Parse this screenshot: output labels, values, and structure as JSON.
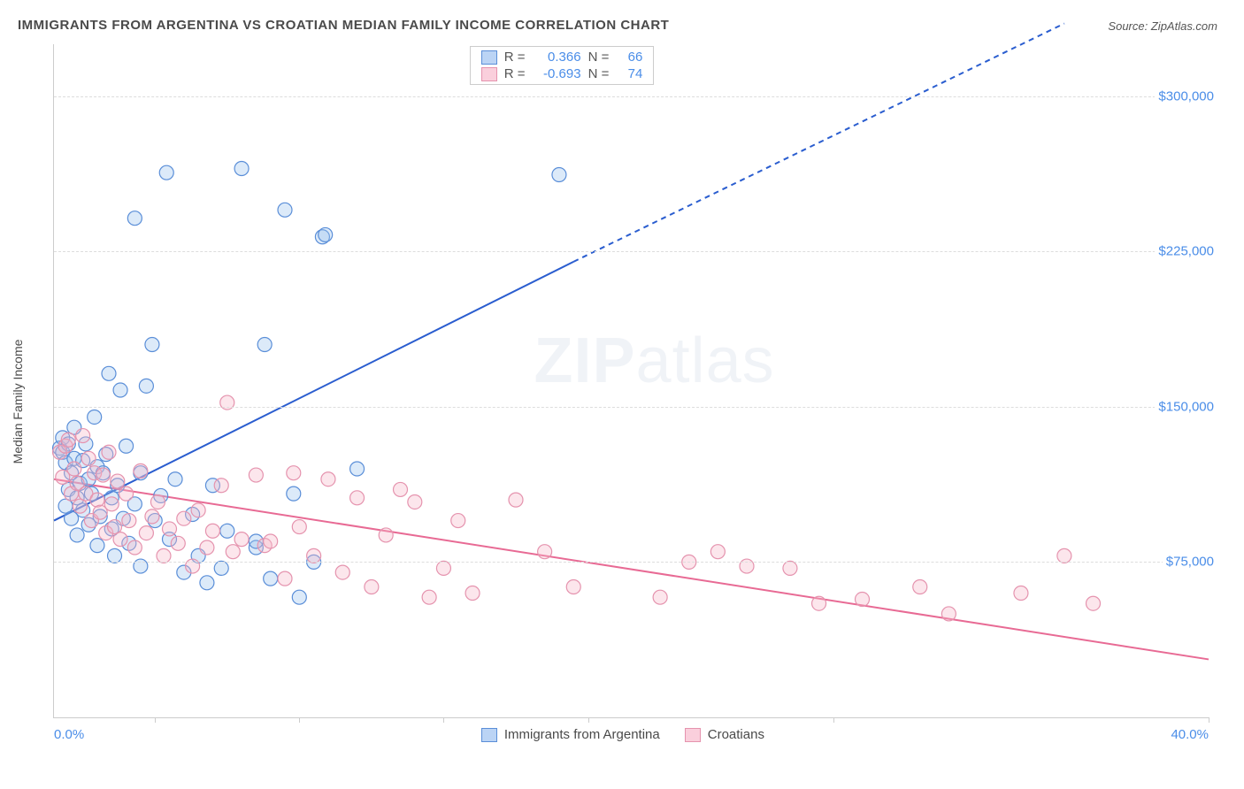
{
  "title": "IMMIGRANTS FROM ARGENTINA VS CROATIAN MEDIAN FAMILY INCOME CORRELATION CHART",
  "source_label": "Source:",
  "source_name": "ZipAtlas.com",
  "y_axis_label": "Median Family Income",
  "watermark_bold": "ZIP",
  "watermark_rest": "atlas",
  "chart": {
    "type": "scatter",
    "xlim": [
      0,
      40
    ],
    "ylim": [
      0,
      325000
    ],
    "x_min_label": "0.0%",
    "x_max_label": "40.0%",
    "x_ticks": [
      3.5,
      8.5,
      13.5,
      18.5,
      27,
      40
    ],
    "y_gridlines": [
      75000,
      150000,
      225000,
      300000
    ],
    "y_grid_labels": [
      "$75,000",
      "$150,000",
      "$225,000",
      "$300,000"
    ],
    "background_color": "#ffffff",
    "grid_color": "#dddddd",
    "axis_color": "#cccccc",
    "marker_radius": 8,
    "marker_stroke_width": 1.2,
    "marker_fill_opacity": 0.35,
    "line_width": 2,
    "series": [
      {
        "name": "Immigrants from Argentina",
        "color_fill": "#9cc3ee",
        "color_stroke": "#5a8ed8",
        "line_color": "#2a5dcf",
        "R": "0.366",
        "N": "66",
        "trend": {
          "x1": 0,
          "y1": 95000,
          "x2": 18,
          "y2": 220000,
          "dash_from_x": 18,
          "dash_to_x": 35,
          "dash_to_y": 335000
        },
        "points": [
          [
            0.2,
            130000
          ],
          [
            0.3,
            128000
          ],
          [
            0.3,
            135000
          ],
          [
            0.4,
            123000
          ],
          [
            0.4,
            102000
          ],
          [
            0.5,
            110000
          ],
          [
            0.5,
            132000
          ],
          [
            0.6,
            118000
          ],
          [
            0.6,
            96000
          ],
          [
            0.7,
            125000
          ],
          [
            0.7,
            140000
          ],
          [
            0.8,
            106000
          ],
          [
            0.8,
            88000
          ],
          [
            0.9,
            113000
          ],
          [
            1.0,
            124000
          ],
          [
            1.0,
            100000
          ],
          [
            1.1,
            132000
          ],
          [
            1.2,
            115000
          ],
          [
            1.2,
            93000
          ],
          [
            1.3,
            108000
          ],
          [
            1.4,
            145000
          ],
          [
            1.5,
            121000
          ],
          [
            1.5,
            83000
          ],
          [
            1.6,
            97000
          ],
          [
            1.7,
            118000
          ],
          [
            1.8,
            127000
          ],
          [
            1.9,
            166000
          ],
          [
            2.0,
            106000
          ],
          [
            2.0,
            91000
          ],
          [
            2.1,
            78000
          ],
          [
            2.2,
            112000
          ],
          [
            2.3,
            158000
          ],
          [
            2.4,
            96000
          ],
          [
            2.5,
            131000
          ],
          [
            2.6,
            84000
          ],
          [
            2.8,
            103000
          ],
          [
            2.8,
            241000
          ],
          [
            3.0,
            118000
          ],
          [
            3.0,
            73000
          ],
          [
            3.2,
            160000
          ],
          [
            3.4,
            180000
          ],
          [
            3.5,
            95000
          ],
          [
            3.7,
            107000
          ],
          [
            3.9,
            263000
          ],
          [
            4.0,
            86000
          ],
          [
            4.2,
            115000
          ],
          [
            4.5,
            70000
          ],
          [
            4.8,
            98000
          ],
          [
            5.0,
            78000
          ],
          [
            5.3,
            65000
          ],
          [
            5.5,
            112000
          ],
          [
            5.8,
            72000
          ],
          [
            6.0,
            90000
          ],
          [
            6.5,
            265000
          ],
          [
            7.0,
            82000
          ],
          [
            7.3,
            180000
          ],
          [
            7.5,
            67000
          ],
          [
            8.0,
            245000
          ],
          [
            8.3,
            108000
          ],
          [
            8.5,
            58000
          ],
          [
            9.0,
            75000
          ],
          [
            9.3,
            232000
          ],
          [
            9.4,
            233000
          ],
          [
            10.5,
            120000
          ],
          [
            17.5,
            262000
          ],
          [
            7.0,
            85000
          ]
        ]
      },
      {
        "name": "Croatians",
        "color_fill": "#f5b8c9",
        "color_stroke": "#e593ae",
        "line_color": "#e86a94",
        "R": "-0.693",
        "N": "74",
        "trend": {
          "x1": 0,
          "y1": 115000,
          "x2": 40,
          "y2": 28000
        },
        "points": [
          [
            0.2,
            128000
          ],
          [
            0.3,
            116000
          ],
          [
            0.4,
            131000
          ],
          [
            0.5,
            134000
          ],
          [
            0.6,
            108000
          ],
          [
            0.7,
            120000
          ],
          [
            0.8,
            113000
          ],
          [
            0.9,
            102000
          ],
          [
            1.0,
            136000
          ],
          [
            1.1,
            108000
          ],
          [
            1.2,
            125000
          ],
          [
            1.3,
            95000
          ],
          [
            1.4,
            118000
          ],
          [
            1.5,
            105000
          ],
          [
            1.6,
            99000
          ],
          [
            1.7,
            117000
          ],
          [
            1.8,
            89000
          ],
          [
            1.9,
            128000
          ],
          [
            2.0,
            103000
          ],
          [
            2.1,
            92000
          ],
          [
            2.2,
            114000
          ],
          [
            2.3,
            86000
          ],
          [
            2.5,
            108000
          ],
          [
            2.6,
            95000
          ],
          [
            2.8,
            82000
          ],
          [
            3.0,
            119000
          ],
          [
            3.2,
            89000
          ],
          [
            3.4,
            97000
          ],
          [
            3.6,
            104000
          ],
          [
            3.8,
            78000
          ],
          [
            4.0,
            91000
          ],
          [
            4.3,
            84000
          ],
          [
            4.5,
            96000
          ],
          [
            4.8,
            73000
          ],
          [
            5.0,
            100000
          ],
          [
            5.3,
            82000
          ],
          [
            5.5,
            90000
          ],
          [
            5.8,
            112000
          ],
          [
            6.0,
            152000
          ],
          [
            6.2,
            80000
          ],
          [
            6.5,
            86000
          ],
          [
            7.0,
            117000
          ],
          [
            7.3,
            83000
          ],
          [
            7.5,
            85000
          ],
          [
            8.0,
            67000
          ],
          [
            8.3,
            118000
          ],
          [
            8.5,
            92000
          ],
          [
            9.0,
            78000
          ],
          [
            9.5,
            115000
          ],
          [
            10.0,
            70000
          ],
          [
            10.5,
            106000
          ],
          [
            11.0,
            63000
          ],
          [
            11.5,
            88000
          ],
          [
            12.0,
            110000
          ],
          [
            12.5,
            104000
          ],
          [
            13.0,
            58000
          ],
          [
            13.5,
            72000
          ],
          [
            14.0,
            95000
          ],
          [
            14.5,
            60000
          ],
          [
            16.0,
            105000
          ],
          [
            17.0,
            80000
          ],
          [
            18.0,
            63000
          ],
          [
            21.0,
            58000
          ],
          [
            22.0,
            75000
          ],
          [
            23.0,
            80000
          ],
          [
            24.0,
            73000
          ],
          [
            25.5,
            72000
          ],
          [
            26.5,
            55000
          ],
          [
            28.0,
            57000
          ],
          [
            30.0,
            63000
          ],
          [
            31.0,
            50000
          ],
          [
            33.5,
            60000
          ],
          [
            35.0,
            78000
          ],
          [
            36.0,
            55000
          ]
        ]
      }
    ]
  },
  "legend_labels": {
    "R": "R =",
    "N": "N ="
  }
}
